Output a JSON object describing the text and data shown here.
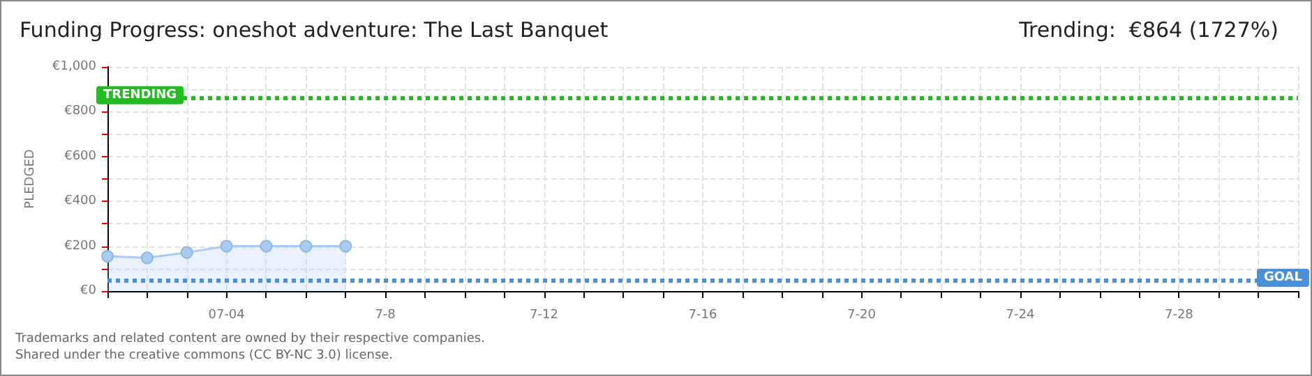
{
  "chart_data": {
    "type": "area",
    "title": "Funding Progress: oneshot adventure: The Last Banquet",
    "subtitle": "Trending:  €864 (1727%)",
    "ylabel": "PLEDGED",
    "x": [
      "--07-01",
      "--07-02",
      "--07-03",
      "--07-04",
      "--07-05",
      "--07-06",
      "--07-07"
    ],
    "series": [
      {
        "color": "#a9cbef",
        "values": [
          155,
          148,
          172,
          200,
          200,
          200,
          200
        ]
      }
    ],
    "xlim": [
      "--07-01",
      "--07-31"
    ],
    "xticks": [
      {
        "value": "--07-01",
        "label": null
      },
      {
        "value": "--07-02",
        "label": null
      },
      {
        "value": "--07-03",
        "label": null
      },
      {
        "value": "--07-04",
        "label": "07-04"
      },
      {
        "value": "--07-05",
        "label": null
      },
      {
        "value": "--07-06",
        "label": null
      },
      {
        "value": "--07-07",
        "label": null
      },
      {
        "value": "--07-08",
        "label": "7-8"
      },
      {
        "value": "--07-09",
        "label": null
      },
      {
        "value": "--07-10",
        "label": null
      },
      {
        "value": "--07-11",
        "label": null
      },
      {
        "value": "--07-12",
        "label": "7-12"
      },
      {
        "value": "--07-13",
        "label": null
      },
      {
        "value": "--07-14",
        "label": null
      },
      {
        "value": "--07-15",
        "label": null
      },
      {
        "value": "--07-16",
        "label": "7-16"
      },
      {
        "value": "--07-17",
        "label": null
      },
      {
        "value": "--07-18",
        "label": null
      },
      {
        "value": "--07-19",
        "label": null
      },
      {
        "value": "--07-20",
        "label": "7-20"
      },
      {
        "value": "--07-21",
        "label": null
      },
      {
        "value": "--07-22",
        "label": null
      },
      {
        "value": "--07-23",
        "label": null
      },
      {
        "value": "--07-24",
        "label": "7-24"
      },
      {
        "value": "--07-25",
        "label": null
      },
      {
        "value": "--07-26",
        "label": null
      },
      {
        "value": "--07-27",
        "label": null
      },
      {
        "value": "--07-28",
        "label": "7-28"
      },
      {
        "value": "--07-29",
        "label": null
      },
      {
        "value": "--07-30",
        "label": null
      },
      {
        "value": "--07-31",
        "label": null
      }
    ],
    "ylim": [
      0,
      1000
    ],
    "yticks": [
      {
        "value": 0,
        "label": "€0"
      },
      {
        "value": 100,
        "label": null
      },
      {
        "value": 200,
        "label": "€200"
      },
      {
        "value": 300,
        "label": null
      },
      {
        "value": 400,
        "label": "€400"
      },
      {
        "value": 500,
        "label": null
      },
      {
        "value": 600,
        "label": "€600"
      },
      {
        "value": 700,
        "label": null
      },
      {
        "value": 800,
        "label": "€800"
      },
      {
        "value": 900,
        "label": null
      },
      {
        "value": 1000,
        "label": "€1,000"
      }
    ],
    "ref_lines": [
      {
        "axis": "y",
        "value": 864,
        "label": "TRENDING",
        "color": "#22bb22",
        "line_style": "dotted"
      },
      {
        "axis": "y",
        "value": 50,
        "label": "GOAL",
        "color": "#4a90d9",
        "line_style": "dotted"
      }
    ],
    "annotations": [
      "Trademarks and related content are owned by their respective companies.",
      "Shared under the creative commons (CC BY-NC 3.0) license."
    ],
    "grid": true,
    "marker": "circle",
    "line_style": "solid"
  }
}
